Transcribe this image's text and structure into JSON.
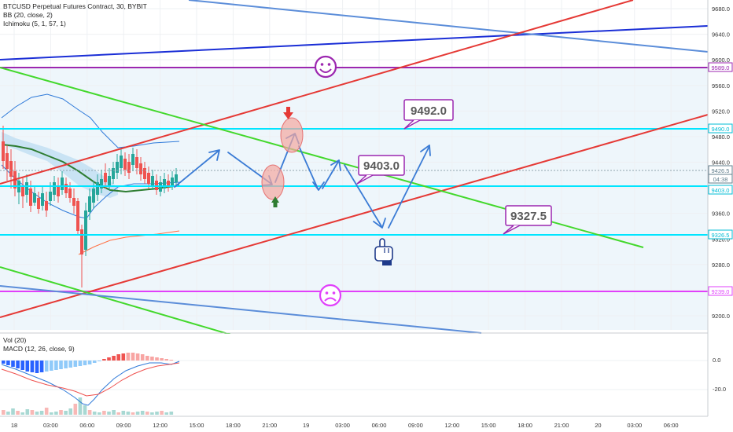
{
  "legend": {
    "title": "BTCUSD Perpetual Futures Contract, 30, BYBIT",
    "bb": "BB (20, close, 2)",
    "ichimoku": "Ichimoku (5, 1, 57, 1)",
    "vol": "Vol (20)",
    "macd": "MACD (12, 26, close, 9)"
  },
  "price_axis": {
    "ticks": [
      "9680.0",
      "9640.0",
      "9600.0",
      "9560.0",
      "9520.0",
      "9480.0",
      "9440.0",
      "9400.0",
      "9360.0",
      "9320.0",
      "9280.0",
      "9240.0",
      "9200.0"
    ],
    "tags": [
      {
        "label": "9589.0",
        "color": "#9c27b0"
      },
      {
        "label": "9490.0",
        "color": "#00bcd4"
      },
      {
        "label": "9426.5",
        "color": "#607d8b"
      },
      {
        "label": "04:38",
        "color": "#607d8b"
      },
      {
        "label": "9403.0",
        "color": "#00bcd4"
      },
      {
        "label": "9326.5",
        "color": "#00bcd4"
      },
      {
        "label": "9239.0",
        "color": "#e040fb"
      }
    ]
  },
  "macd_axis": {
    "ticks": [
      "0.0",
      "-20.0"
    ]
  },
  "time_axis": {
    "ticks": [
      "18",
      "03:00",
      "06:00",
      "09:00",
      "12:00",
      "15:00",
      "18:00",
      "21:00",
      "19",
      "03:00",
      "06:00",
      "09:00",
      "12:00",
      "15:00",
      "18:00",
      "21:00",
      "20",
      "03:00",
      "06:00"
    ]
  },
  "callouts": [
    {
      "label": "9492.0"
    },
    {
      "label": "9403.0"
    },
    {
      "label": "9327.5"
    }
  ],
  "chart_data": {
    "type": "candlestick",
    "symbol": "BTCUSD",
    "interval": "30",
    "ylim": [
      9180,
      9700
    ],
    "horizontal_levels": [
      9589.0,
      9490.0,
      9403.0,
      9326.5,
      9239.0
    ],
    "last_price": 9426.5,
    "projection_targets": [
      9492.0,
      9403.0,
      9327.5
    ]
  },
  "colors": {
    "up": "#26a69a",
    "down": "#ef5350",
    "resistance": "#9c27b0",
    "level": "#00e5ff",
    "support": "#e040fb",
    "trend_red": "#e53935",
    "trend_green": "#43d82c",
    "trend_blue": "#1a2ed6",
    "channel_blue": "#5b8dd9",
    "arrow_blue": "#3a7bd5"
  },
  "icons": {
    "happy": "smiley-face-icon",
    "sad": "sad-face-icon",
    "hand": "pointing-hand-icon",
    "down_arrow": "red-down-arrow-icon",
    "up_arrow": "green-up-arrow-icon"
  }
}
